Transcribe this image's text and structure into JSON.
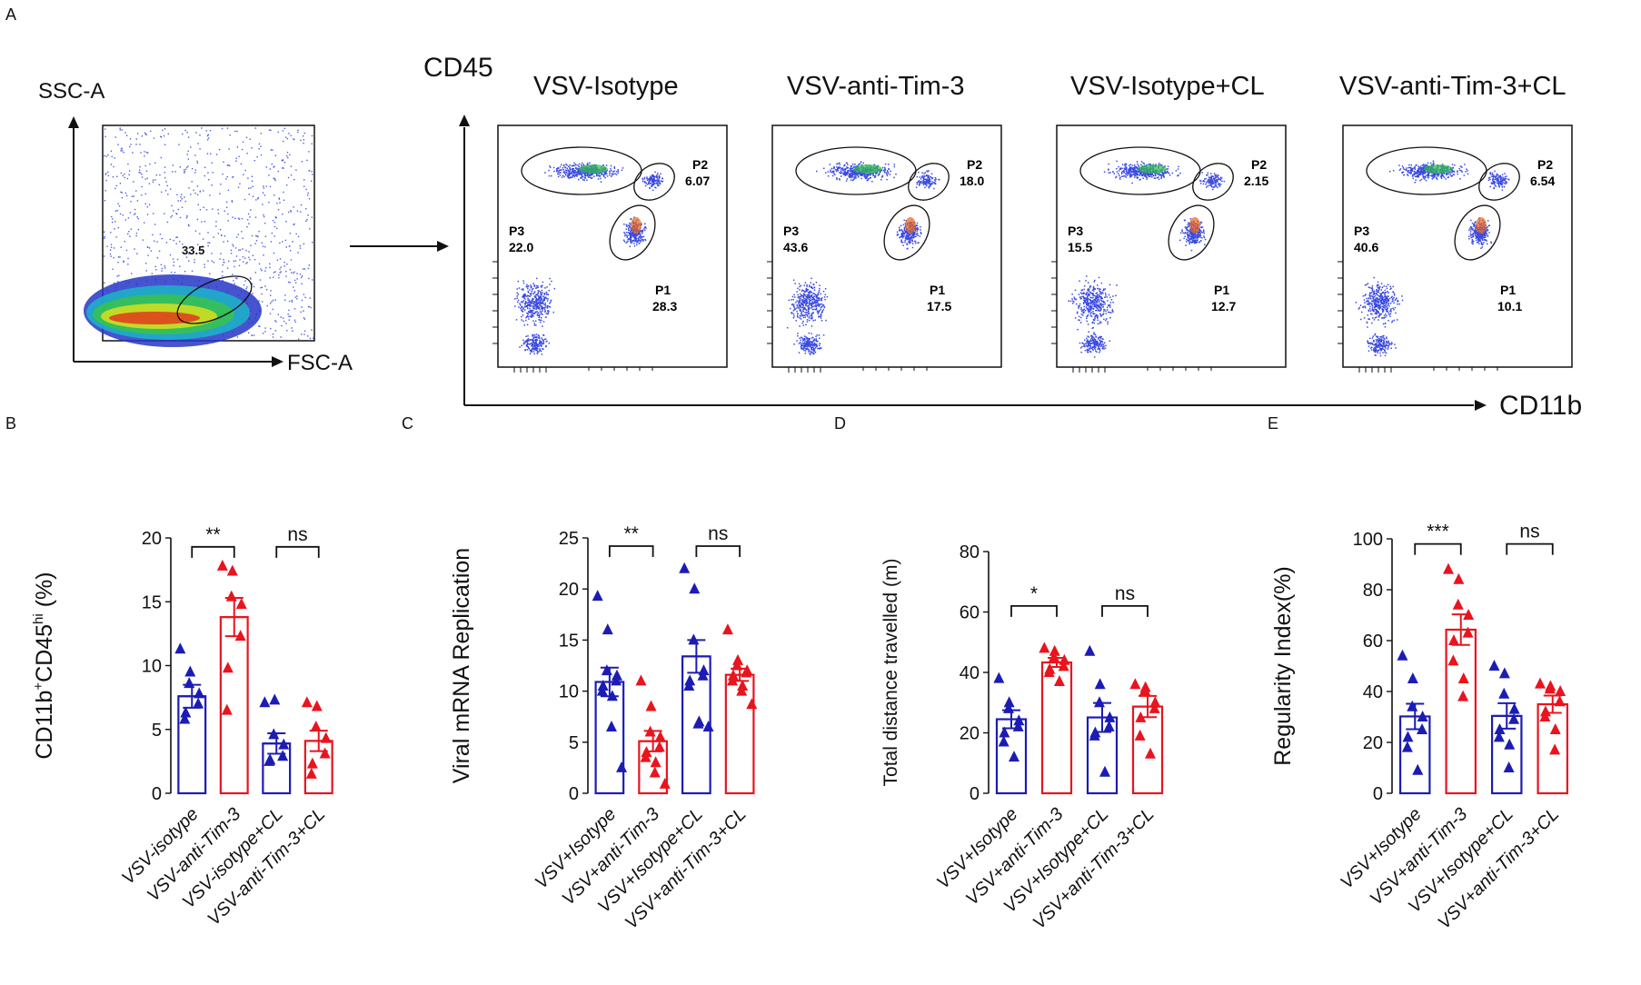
{
  "colors": {
    "blue": "#1c1cb4",
    "red": "#e8141e",
    "black": "#111111"
  },
  "panel_labels": [
    "A",
    "B",
    "C",
    "D",
    "E"
  ],
  "flow": {
    "gating": {
      "y_label": "SSC-A",
      "x_label": "FSC-A",
      "gate_value": "33.5"
    },
    "y_axis_label": "CD45",
    "x_axis_label": "CD11b",
    "samples": [
      {
        "title": "VSV-Isotype",
        "p2": "6.07",
        "p3": "22.0",
        "p1": "28.3"
      },
      {
        "title": "VSV-anti-Tim-3",
        "p2": "18.0",
        "p3": "43.6",
        "p1": "17.5"
      },
      {
        "title": "VSV-Isotype+CL",
        "p2": "2.15",
        "p3": "15.5",
        "p1": "12.7"
      },
      {
        "title": "VSV-anti-Tim-3+CL",
        "p2": "6.54",
        "p3": "40.6",
        "p1": "10.1"
      }
    ],
    "gate_names": {
      "p1": "P1",
      "p2": "P2",
      "p3": "P3"
    }
  },
  "chart_data": [
    {
      "id": "B",
      "type": "bar",
      "ylabel_main": "CD11b",
      "ylabel_sup1": "+",
      "ylabel_mid": "CD45",
      "ylabel_sup2": "hi",
      "ylabel_tail": " (%)",
      "ylim": [
        0,
        20
      ],
      "ticks": [
        0,
        5,
        10,
        15,
        20
      ],
      "categories": [
        "VSV-isotype",
        "VSV-anti-Tim-3",
        "VSV-isotype+CL",
        "VSV-anti-Tim-3+CL"
      ],
      "means": [
        7.6,
        13.8,
        3.9,
        4.1
      ],
      "sem": [
        0.9,
        1.5,
        0.8,
        0.8
      ],
      "points": [
        [
          11.3,
          9.5,
          8.6,
          7.8,
          7.0,
          6.3,
          5.8
        ],
        [
          17.8,
          17.4,
          15.4,
          14.8,
          12.3,
          9.8,
          6.5
        ],
        [
          7.1,
          7.3,
          4.6,
          3.8,
          2.9,
          2.6,
          2.5
        ],
        [
          7.1,
          6.8,
          5.2,
          4.3,
          3.1,
          2.3,
          1.5
        ]
      ],
      "sig": [
        {
          "from": 0,
          "to": 1,
          "label": "**",
          "y": 19.3
        },
        {
          "from": 2,
          "to": 3,
          "label": "ns",
          "y": 19.3
        }
      ]
    },
    {
      "id": "C",
      "type": "bar",
      "ylabel": "Viral mRNA Replication",
      "ylim": [
        0,
        25
      ],
      "ticks": [
        0,
        5,
        10,
        15,
        20,
        25
      ],
      "categories": [
        "VSV+Isotype",
        "VSV+anti-Tim-3",
        "VSV+Isotype+CL",
        "VSV+anti-Tim-3+CL"
      ],
      "means": [
        10.9,
        5.1,
        13.4,
        11.6
      ],
      "sem": [
        1.4,
        1.0,
        1.6,
        0.6
      ],
      "points": [
        [
          19.3,
          16.0,
          12.0,
          11.5,
          11.0,
          10.5,
          10.0,
          9.5,
          6.5,
          2.5
        ],
        [
          11.0,
          8.5,
          6.0,
          5.5,
          4.5,
          4.0,
          3.5,
          3.0,
          2.0,
          0.9
        ],
        [
          22.0,
          20.0,
          15.0,
          12.0,
          11.5,
          11.0,
          10.5,
          7.0,
          6.8,
          6.5
        ],
        [
          16.0,
          13.0,
          12.5,
          12.0,
          11.8,
          11.5,
          11.0,
          10.5,
          10.0,
          8.7
        ]
      ],
      "sig": [
        {
          "from": 0,
          "to": 1,
          "label": "**",
          "y": 24.2
        },
        {
          "from": 2,
          "to": 3,
          "label": "ns",
          "y": 24.2
        }
      ]
    },
    {
      "id": "D",
      "type": "bar",
      "ylabel": "Total distance travelled (m)",
      "ylim": [
        0,
        80
      ],
      "ticks": [
        0,
        20,
        40,
        60,
        80
      ],
      "categories": [
        "VSV+Isotype",
        "VSV+anti-Tim-3",
        "VSV+Isotype+CL",
        "VSV+anti-Tim-3+CL"
      ],
      "means": [
        24.5,
        43.3,
        25.1,
        28.7
      ],
      "sem": [
        3.0,
        1.5,
        4.8,
        3.5
      ],
      "points": [
        [
          38.0,
          30.0,
          28.0,
          24.0,
          22.0,
          20.0,
          17.0,
          12.0
        ],
        [
          48.0,
          47.0,
          45.0,
          44.0,
          42.0,
          41.0,
          40.0,
          37.0
        ],
        [
          47.0,
          36.0,
          30.0,
          25.0,
          22.0,
          20.0,
          19.0,
          7.0
        ],
        [
          36.0,
          35.0,
          34.0,
          30.0,
          28.0,
          25.0,
          19.0,
          13.0
        ]
      ],
      "sig": [
        {
          "from": 0,
          "to": 1,
          "label": "*",
          "y": 62.0
        },
        {
          "from": 2,
          "to": 3,
          "label": "ns",
          "y": 62.0
        }
      ]
    },
    {
      "id": "E",
      "type": "bar",
      "ylabel": "Regularity Index(%)",
      "ylim": [
        0,
        100
      ],
      "ticks": [
        0,
        20,
        40,
        60,
        80,
        100
      ],
      "categories": [
        "VSV+Isotype",
        "VSV+anti-Tim-3",
        "VSV+Isotype+CL",
        "VSV+anti-Tim-3+CL"
      ],
      "means": [
        30.2,
        64.3,
        30.4,
        35.0
      ],
      "sem": [
        5.0,
        6.0,
        5.0,
        3.4
      ],
      "points": [
        [
          54.0,
          45.0,
          34.0,
          30.0,
          25.0,
          22.0,
          18.0,
          9.0
        ],
        [
          88.0,
          84.0,
          74.0,
          70.0,
          63.0,
          60.0,
          52.0,
          45.0,
          38.0
        ],
        [
          50.0,
          47.0,
          39.0,
          33.0,
          29.0,
          25.0,
          22.0,
          19.0,
          10.0
        ],
        [
          43.0,
          42.0,
          41.0,
          40.0,
          36.0,
          32.0,
          30.0,
          25.0,
          17.0
        ]
      ],
      "sig": [
        {
          "from": 0,
          "to": 1,
          "label": "***",
          "y": 98.0
        },
        {
          "from": 2,
          "to": 3,
          "label": "ns",
          "y": 98.0
        }
      ]
    }
  ]
}
